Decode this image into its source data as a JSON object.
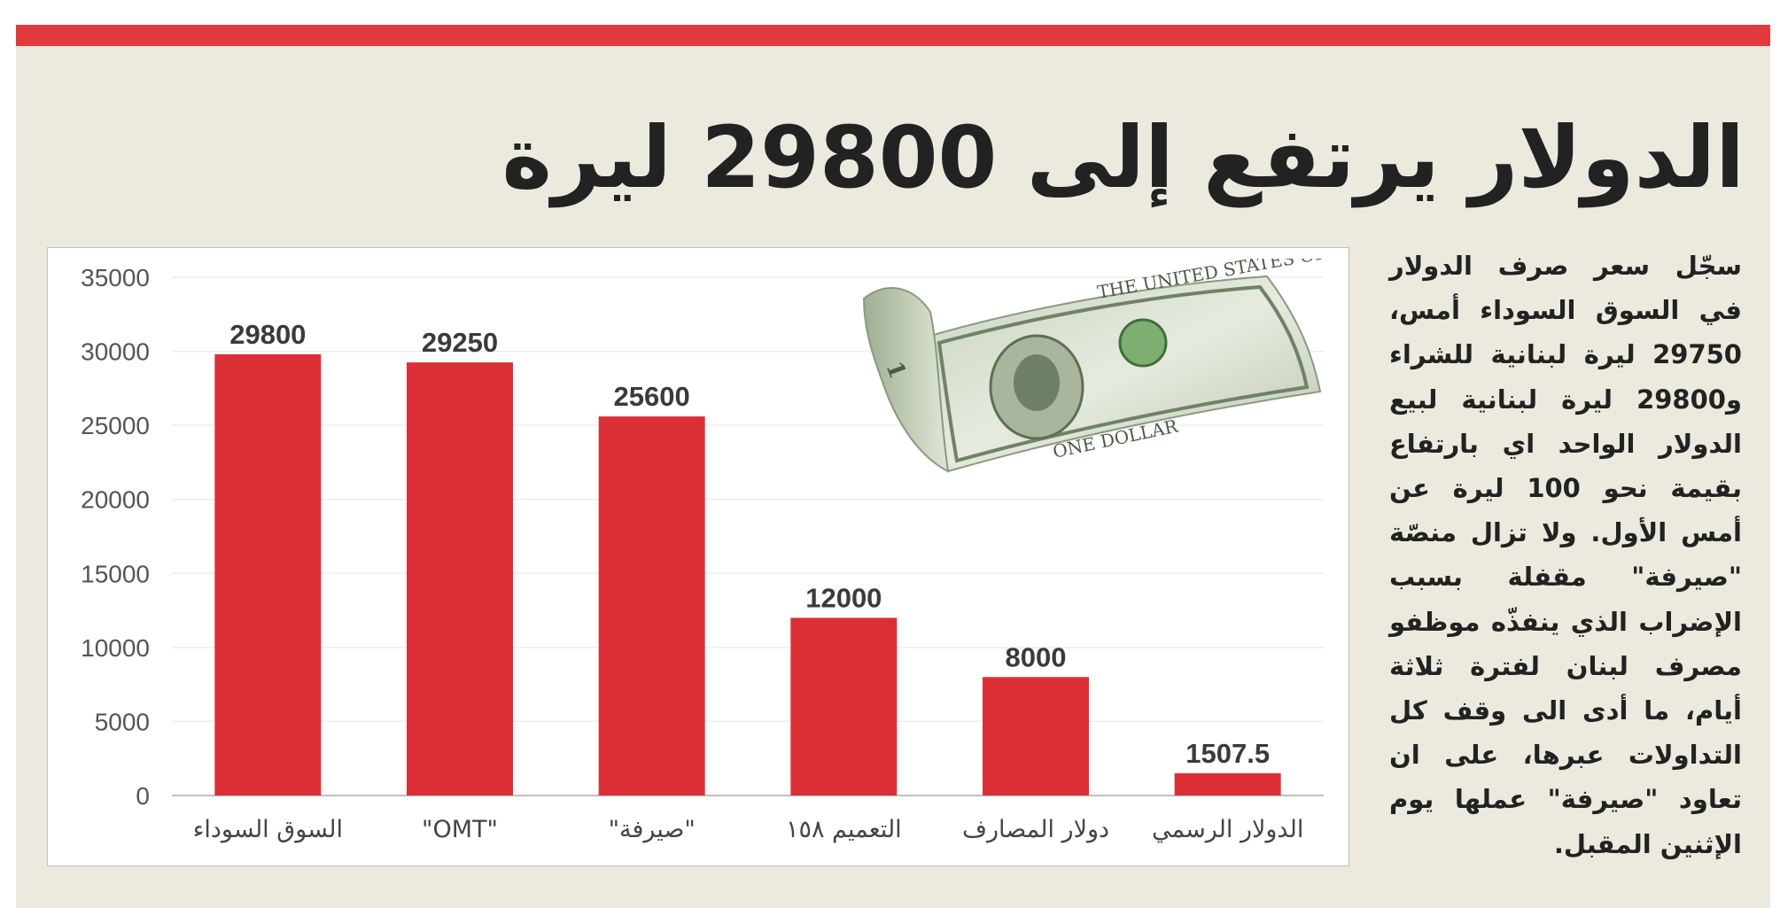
{
  "headline": "الدولار يرتفع إلى 29800 ليرة",
  "article": {
    "text": "سجّل سعر صرف الدولار في السوق السوداء أمس، 29750 ليرة لبنانية للشراء و29800 ليرة لبنانية لبيع الدولار الواحد اي بارتفاع بقيمة نحو 100 ليرة عن أمس الأول. ولا تزال منصّة \"صيرفة\" مقفلة بسبب الإضراب الذي ينفذّه موظفو مصرف لبنان لفترة ثلاثة أيام، ما أدى الى وقف كل التداولات عبرها، على ان تعاود \"صيرفة\" عملها يوم الإثنين المقبل."
  },
  "image": {
    "icon": "dollar-bill-image"
  },
  "colors": {
    "accent_red": "#e03a3e",
    "bar_color": "#da3035",
    "panel_bg": "#ece9de"
  },
  "chart_data": {
    "type": "bar",
    "categories": [
      "السوق السوداء",
      "\"OMT\"",
      "\"صيرفة\"",
      "التعميم ١٥٨",
      "دولار المصارف",
      "الدولار الرسمي"
    ],
    "values": [
      29800,
      29250,
      25600,
      12000,
      8000,
      1507.5
    ],
    "value_labels": [
      "29800",
      "29250",
      "25600",
      "12000",
      "8000",
      "1507.5"
    ],
    "ylim": [
      0,
      35000
    ],
    "yticks": [
      0,
      5000,
      10000,
      15000,
      20000,
      25000,
      30000,
      35000
    ],
    "ytick_labels": [
      "0",
      "5000",
      "10000",
      "15000",
      "20000",
      "25000",
      "30000",
      "35000"
    ],
    "grid": true,
    "legend": "none"
  }
}
